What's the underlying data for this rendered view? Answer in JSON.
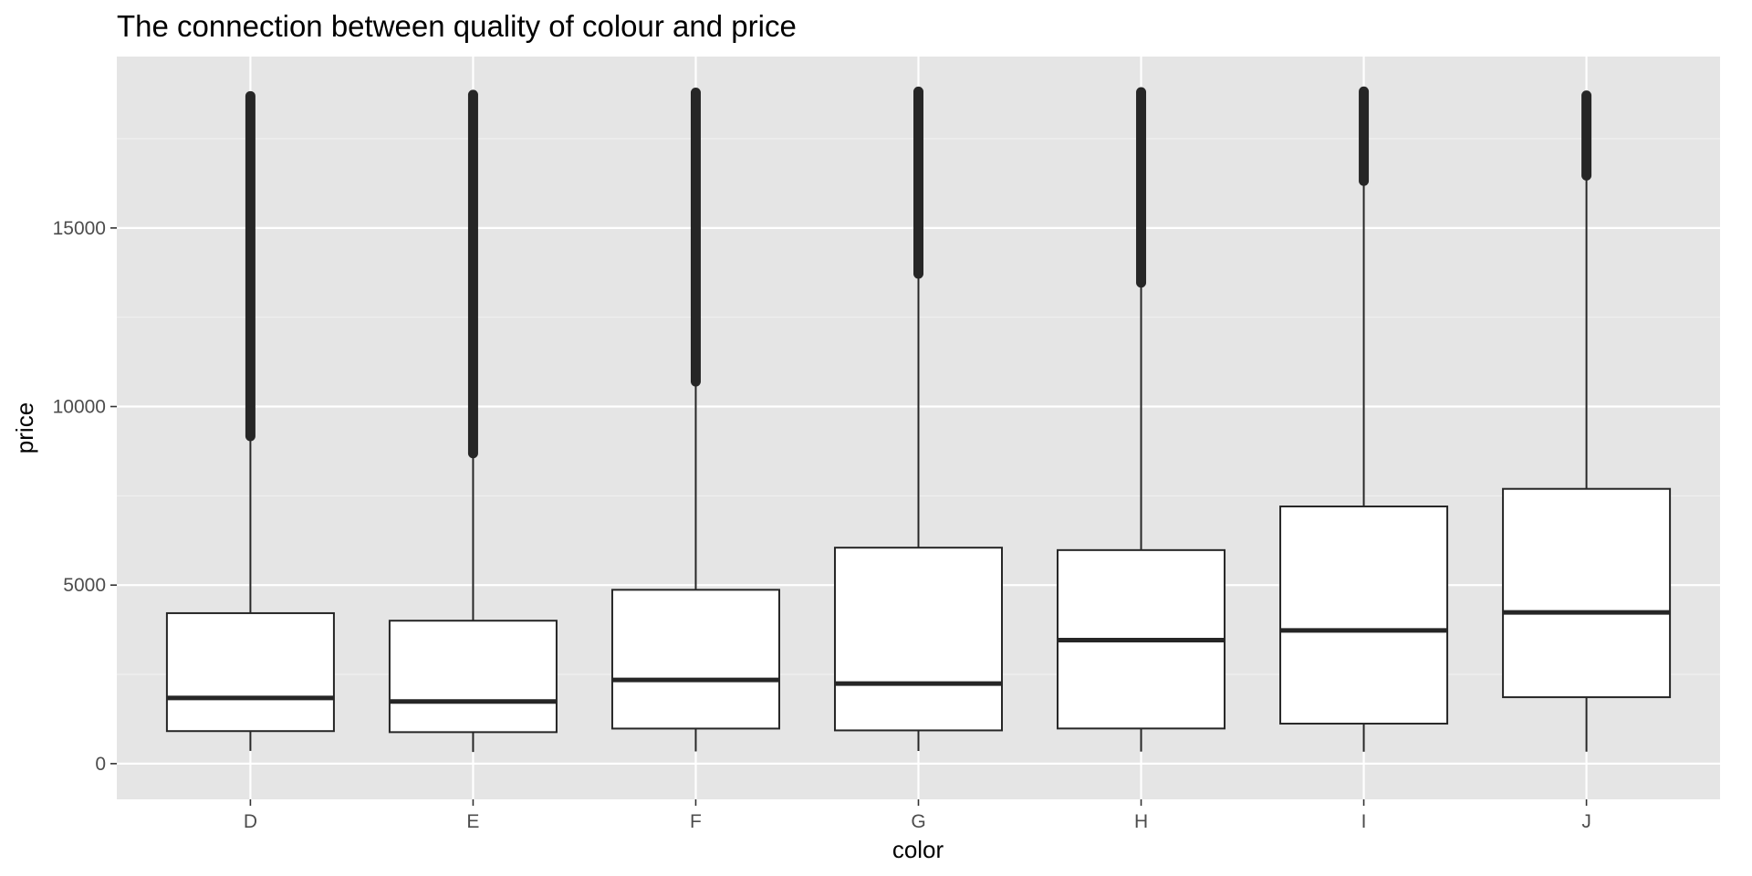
{
  "chart_data": {
    "type": "boxplot",
    "title": "The connection between quality of colour and price",
    "xlabel": "color",
    "ylabel": "price",
    "categories": [
      "D",
      "E",
      "F",
      "G",
      "H",
      "I",
      "J"
    ],
    "ylim": [
      -1000,
      19800
    ],
    "yticks": [
      0,
      5000,
      10000,
      15000
    ],
    "grid": true,
    "boxes": [
      {
        "category": "D",
        "whisker_low": 357,
        "q1": 911,
        "median": 1838,
        "q3": 4214,
        "whisker_high": 9165,
        "outlier_min": 9170,
        "outlier_max": 18693
      },
      {
        "category": "E",
        "whisker_low": 326,
        "q1": 882,
        "median": 1739,
        "q3": 4003,
        "whisker_high": 8682,
        "outlier_min": 8690,
        "outlier_max": 18731
      },
      {
        "category": "F",
        "whisker_low": 342,
        "q1": 982,
        "median": 2344,
        "q3": 4868,
        "whisker_high": 10693,
        "outlier_min": 10700,
        "outlier_max": 18791
      },
      {
        "category": "G",
        "whisker_low": 354,
        "q1": 931,
        "median": 2242,
        "q3": 6048,
        "whisker_high": 13718,
        "outlier_min": 13720,
        "outlier_max": 18818
      },
      {
        "category": "H",
        "whisker_low": 337,
        "q1": 984,
        "median": 3460,
        "q3": 5980,
        "whisker_high": 13468,
        "outlier_min": 13470,
        "outlier_max": 18803
      },
      {
        "category": "I",
        "whisker_low": 334,
        "q1": 1120,
        "median": 3730,
        "q3": 7202,
        "whisker_high": 16314,
        "outlier_min": 16320,
        "outlier_max": 18823
      },
      {
        "category": "J",
        "whisker_low": 335,
        "q1": 1860,
        "median": 4234,
        "q3": 7695,
        "whisker_high": 16459,
        "outlier_min": 16470,
        "outlier_max": 18710
      }
    ]
  }
}
